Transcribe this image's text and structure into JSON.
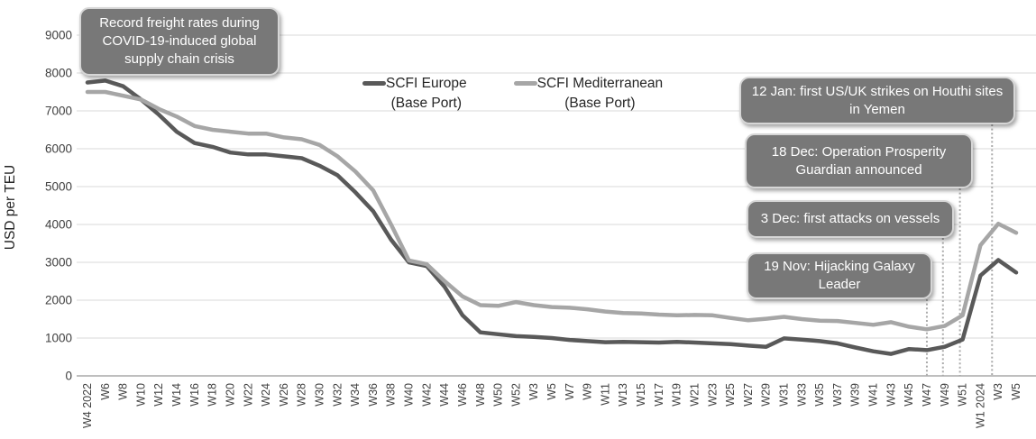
{
  "chart_data": {
    "type": "line",
    "ylabel": "USD per TEU",
    "ylim": [
      0,
      9000
    ],
    "ytick_step": 1000,
    "grid": "horizontal",
    "legend_position": "top-center",
    "categories": [
      "W4 2022",
      "W6",
      "W8",
      "W10",
      "W12",
      "W14",
      "W16",
      "W18",
      "W20",
      "W22",
      "W24",
      "W26",
      "W28",
      "W30",
      "W32",
      "W34",
      "W36",
      "W38",
      "W40",
      "W42",
      "W44",
      "W46",
      "W48",
      "W50",
      "W52",
      "W3",
      "W5",
      "W7",
      "W9",
      "W11",
      "W13",
      "W15",
      "W17",
      "W19",
      "W21",
      "W23",
      "W25",
      "W27",
      "W29",
      "W31",
      "W33",
      "W35",
      "W37",
      "W39",
      "W41",
      "W43",
      "W45",
      "W47",
      "W49",
      "W51",
      "W1 2024",
      "W3",
      "W5"
    ],
    "series": [
      {
        "name": "SCFI Europe",
        "subtitle": "(Base Port)",
        "color": "#595959",
        "values": [
          7750,
          7800,
          7650,
          7300,
          6900,
          6450,
          6150,
          6050,
          5900,
          5850,
          5850,
          5800,
          5750,
          5550,
          5300,
          4850,
          4350,
          3600,
          3000,
          2900,
          2350,
          1600,
          1150,
          1100,
          1050,
          1030,
          1000,
          950,
          920,
          890,
          900,
          890,
          880,
          900,
          880,
          860,
          840,
          800,
          770,
          990,
          960,
          920,
          860,
          750,
          650,
          580,
          710,
          680,
          770,
          960,
          2650,
          3060,
          2730
        ]
      },
      {
        "name": "SCFI Mediterranean",
        "subtitle": "(Base Port)",
        "color": "#a6a6a6",
        "values": [
          7500,
          7500,
          7400,
          7300,
          7050,
          6850,
          6600,
          6500,
          6450,
          6400,
          6400,
          6300,
          6250,
          6100,
          5800,
          5400,
          4900,
          4000,
          3050,
          2950,
          2500,
          2100,
          1870,
          1850,
          1950,
          1870,
          1820,
          1800,
          1760,
          1700,
          1660,
          1650,
          1620,
          1600,
          1610,
          1600,
          1530,
          1470,
          1510,
          1560,
          1500,
          1460,
          1450,
          1400,
          1350,
          1420,
          1300,
          1230,
          1320,
          1600,
          3450,
          4020,
          3780
        ]
      }
    ],
    "events": [
      {
        "name": "nov19",
        "tick_pos": 47.0
      },
      {
        "name": "dec3",
        "tick_pos": 47.9
      },
      {
        "name": "dec18",
        "tick_pos": 48.85
      },
      {
        "name": "jan12",
        "tick_pos": 50.65
      }
    ]
  },
  "annotations": {
    "covid": "Record freight rates during COVID-19-induced global supply chain crisis",
    "jan12": "12 Jan: first US/UK strikes on Houthi sites in Yemen",
    "dec18": "18 Dec: Operation Prosperity Guardian announced",
    "dec3": "3 Dec: first attacks on vessels",
    "nov19": "19 Nov: Hijacking Galaxy Leader"
  },
  "colors": {
    "grid": "#d9d9d9",
    "axis": "#bfbfbf",
    "tick_text": "#404040",
    "event_line": "#ababab",
    "callout_bg": "#787878"
  }
}
